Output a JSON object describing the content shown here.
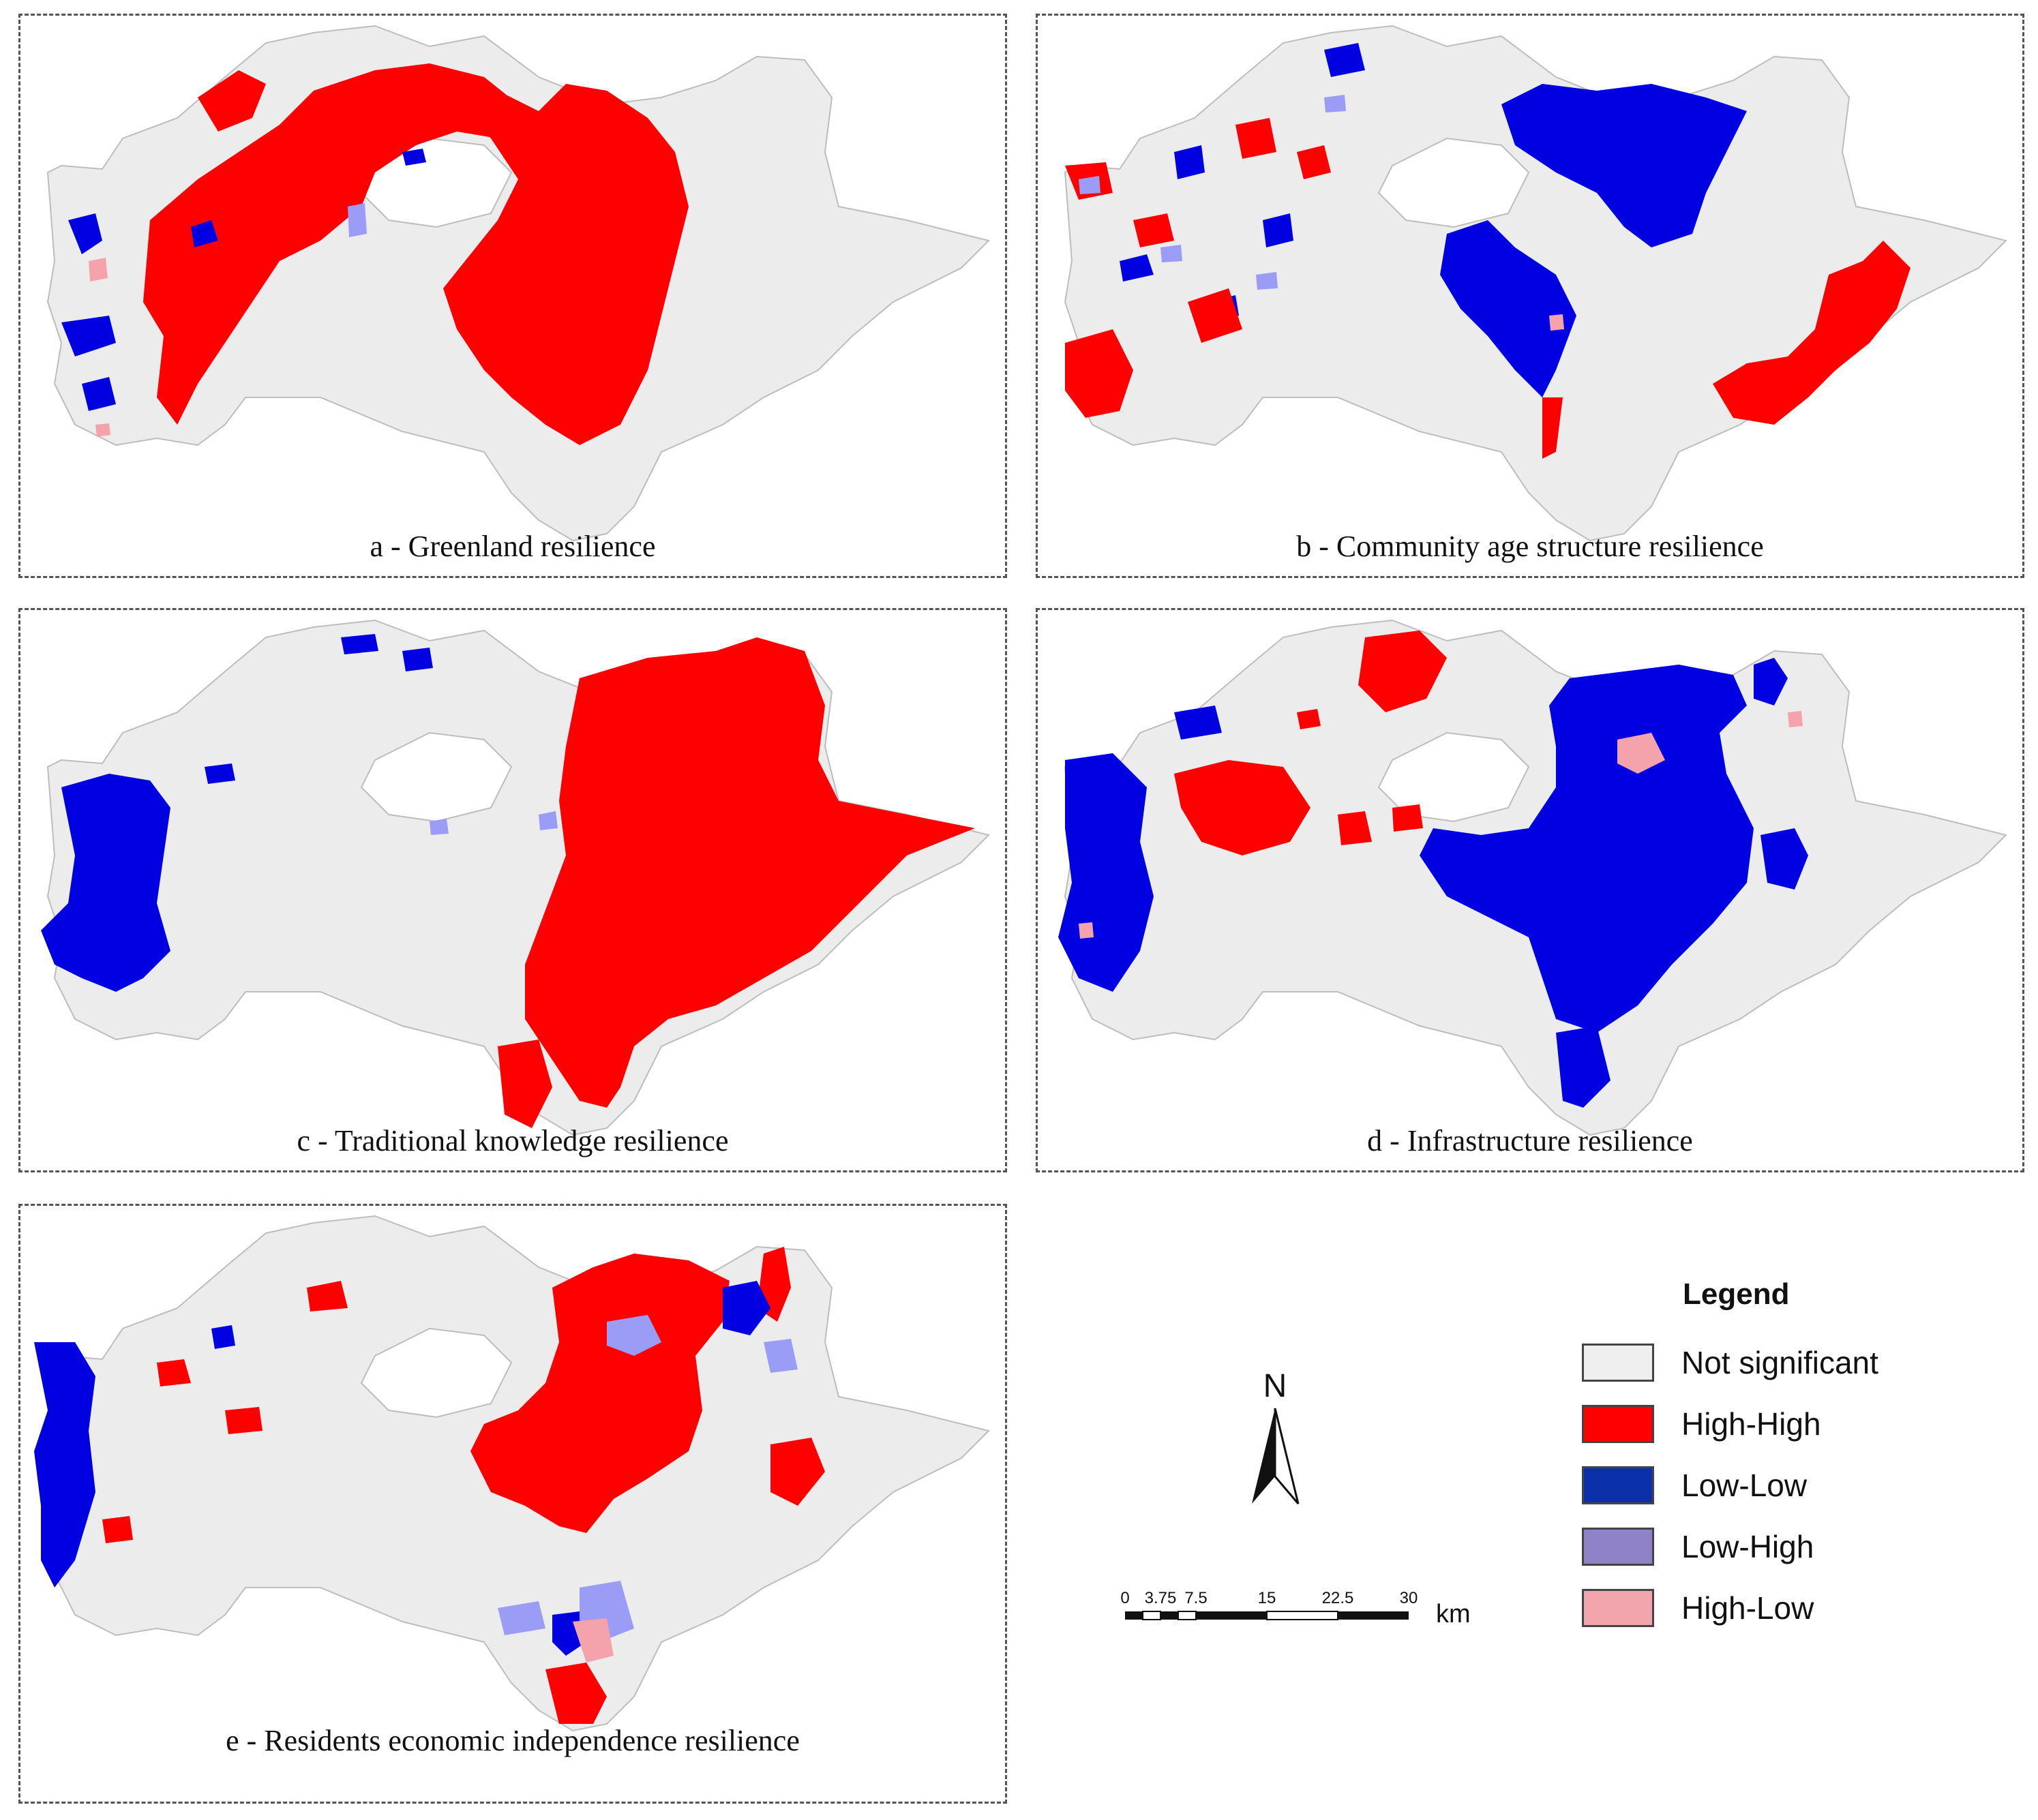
{
  "figure": {
    "panels": [
      {
        "id": "a",
        "caption": "a - Greenland resilience"
      },
      {
        "id": "b",
        "caption": "b - Community age structure resilience"
      },
      {
        "id": "c",
        "caption": "c - Traditional knowledge resilience"
      },
      {
        "id": "d",
        "caption": "d - Infrastructure resilience"
      },
      {
        "id": "e",
        "caption": "e - Residents economic independence resilience"
      }
    ]
  },
  "legend": {
    "title": "Legend",
    "items": [
      {
        "label": "Not significant",
        "color": "#efefef"
      },
      {
        "label": "High-High",
        "color": "#ff0000"
      },
      {
        "label": "Low-Low",
        "color": "#0a2fa8"
      },
      {
        "label": "Low-High",
        "color": "#8f82c8"
      },
      {
        "label": "High-Low",
        "color": "#f3a5ad"
      }
    ]
  },
  "north_arrow": {
    "label": "N"
  },
  "scale_bar": {
    "ticks": [
      "0",
      "3.75",
      "7.5",
      "15",
      "22.5",
      "30"
    ],
    "unit": "km"
  },
  "colors": {
    "base": "#ececec",
    "high_high": "#ff0000",
    "low_low": "#0000e0",
    "low_high": "#9a9cf5",
    "high_low": "#f4a3ad"
  }
}
